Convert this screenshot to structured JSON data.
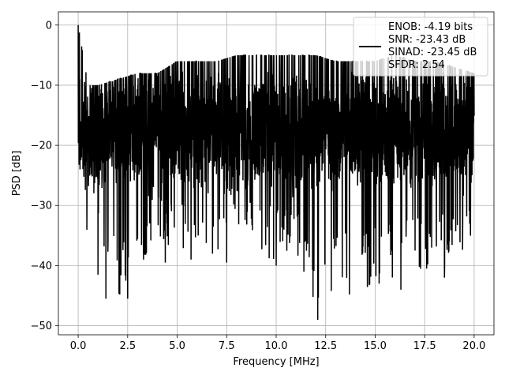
{
  "chart_data": {
    "type": "line",
    "xlabel": "Frequency [MHz]",
    "ylabel": "PSD [dB]",
    "xlim": [
      -1.0,
      21.0
    ],
    "ylim": [
      -51.5,
      2.2
    ],
    "x_ticks": [
      0.0,
      2.5,
      5.0,
      7.5,
      10.0,
      12.5,
      15.0,
      17.5,
      20.0
    ],
    "x_tick_labels": [
      "0.0",
      "2.5",
      "5.0",
      "7.5",
      "10.0",
      "12.5",
      "15.0",
      "17.5",
      "20.0"
    ],
    "y_ticks": [
      0,
      -10,
      -20,
      -30,
      -40,
      -50
    ],
    "y_tick_labels": [
      "0",
      "−10",
      "−20",
      "−30",
      "−40",
      "−50"
    ],
    "grid": true,
    "legend_position": "top-right",
    "series": [
      {
        "color": "#000000",
        "legend_lines": [
          "ENOB: -4.19 bits",
          "SNR: -23.43 dB",
          "SINAD: -23.45 dB",
          "SFDR: 2.54"
        ],
        "x_range": [
          0.0,
          20.0
        ],
        "peak": {
          "x": 0.0,
          "y": 0.0
        },
        "envelope_x": [
          0.0,
          0.5,
          1.0,
          2.0,
          3.0,
          4.0,
          5.0,
          6.0,
          7.0,
          8.0,
          9.0,
          10.0,
          11.0,
          12.0,
          13.0,
          14.0,
          15.0,
          16.0,
          17.0,
          18.0,
          19.0,
          20.0
        ],
        "envelope_top": [
          0.0,
          -10.0,
          -10.0,
          -9.0,
          -8.0,
          -8.0,
          -6.0,
          -6.0,
          -6.0,
          -5.0,
          -5.0,
          -5.0,
          -5.0,
          -5.0,
          -6.0,
          -6.0,
          -6.0,
          -5.0,
          -6.0,
          -6.0,
          -7.0,
          -8.0
        ],
        "envelope_bottom": [
          -23.0,
          -37.0,
          -33.0,
          -45.5,
          -40.0,
          -36.0,
          -39.0,
          -35.0,
          -40.0,
          -34.0,
          -38.0,
          -40.0,
          -38.0,
          -49.0,
          -43.0,
          -45.0,
          -43.0,
          -43.0,
          -42.0,
          -42.0,
          -39.0,
          -36.0
        ],
        "notable_dips": [
          {
            "x": 1.0,
            "y": -41.5
          },
          {
            "x": 1.4,
            "y": -45.5
          },
          {
            "x": 2.5,
            "y": -45.5
          },
          {
            "x": 3.3,
            "y": -39.0
          },
          {
            "x": 4.4,
            "y": -39.5
          },
          {
            "x": 5.7,
            "y": -39.0
          },
          {
            "x": 7.5,
            "y": -39.5
          },
          {
            "x": 10.0,
            "y": -40.0
          },
          {
            "x": 11.4,
            "y": -41.0
          },
          {
            "x": 12.1,
            "y": -49.0
          },
          {
            "x": 13.7,
            "y": -44.8
          },
          {
            "x": 15.2,
            "y": -43.0
          },
          {
            "x": 16.3,
            "y": -44.0
          },
          {
            "x": 17.6,
            "y": -40.5
          },
          {
            "x": 18.5,
            "y": -42.0
          }
        ],
        "typical_band": [
          -25.0,
          -10.0
        ]
      }
    ]
  }
}
